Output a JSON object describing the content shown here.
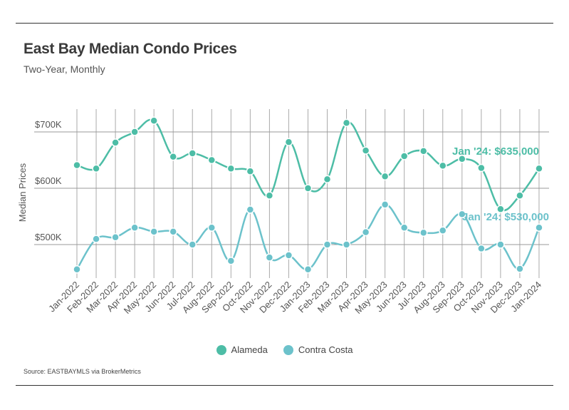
{
  "chart_data": {
    "type": "line",
    "title": "East Bay Median Condo Prices",
    "subtitle": "Two-Year, Monthly",
    "ylabel": "Median Prices",
    "xlabel": "",
    "ylim": [
      445000,
      740000
    ],
    "yticks": [
      {
        "value": 500000,
        "label": "$500K"
      },
      {
        "value": 600000,
        "label": "$600K"
      },
      {
        "value": 700000,
        "label": "$700K"
      }
    ],
    "grid": true,
    "legend_position": "bottom",
    "categories": [
      "Jan-2022",
      "Feb-2022",
      "Mar-2022",
      "Apr-2022",
      "May-2022",
      "Jun-2022",
      "Jul-2022",
      "Aug-2022",
      "Sep-2022",
      "Oct-2022",
      "Nov-2022",
      "Dec-2022",
      "Jan-2023",
      "Feb-2023",
      "Mar-2023",
      "Apr-2023",
      "May-2023",
      "Jun-2023",
      "Jul-2023",
      "Aug-2023",
      "Sep-2023",
      "Oct-2023",
      "Nov-2023",
      "Dec-2023",
      "Jan-2024"
    ],
    "series": [
      {
        "name": "Alameda",
        "color": "#4dbda6",
        "values": [
          641000,
          635000,
          681000,
          700000,
          720000,
          656000,
          662000,
          650000,
          635000,
          630000,
          587000,
          682000,
          600000,
          616000,
          716000,
          667000,
          621000,
          657000,
          666000,
          640000,
          652000,
          636000,
          563000,
          587000,
          635000
        ],
        "annotation": "Jan '24: $635,000"
      },
      {
        "name": "Contra Costa",
        "color": "#6cc2cb",
        "values": [
          456000,
          510000,
          513000,
          530000,
          523000,
          523000,
          500000,
          530000,
          471000,
          562000,
          477000,
          481000,
          456000,
          500000,
          500000,
          522000,
          571000,
          530000,
          521000,
          525000,
          554000,
          493000,
          500000,
          457000,
          530000
        ],
        "annotation": "Jan '24: $530,000"
      }
    ]
  },
  "source": "Source:  EASTBAYMLS via BrokerMetrics"
}
